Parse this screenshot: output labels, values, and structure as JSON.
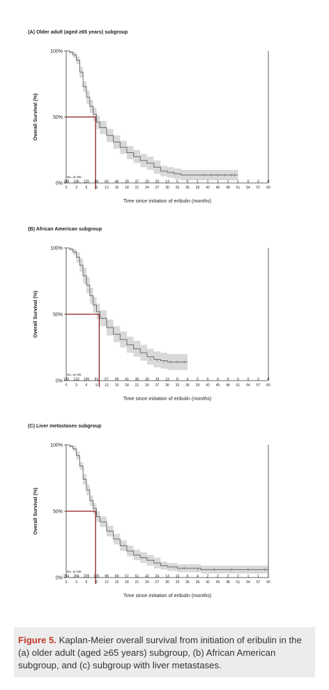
{
  "colors": {
    "background": "#ececec",
    "panel": "#ffffff",
    "curve": "#6b6b6b",
    "band": "#d9d9d9",
    "median_line": "#8b1a1a",
    "caption_accent": "#c0392b"
  },
  "caption": {
    "label": "Figure 5.",
    "text": " Kaplan-Meier overall survival from initiation of eribulin in the (a) older adult (aged ≥65 years) subgroup, (b) African American subgroup, and (c) subgroup with liver metastases."
  },
  "chart_data": [
    {
      "type": "line",
      "title": "(A) Older adult (aged ≥65 years) subgroup",
      "xlabel": "Time since initiation of eribulin (months)",
      "ylabel": "Overall Survival (%)",
      "xlim": [
        0,
        60
      ],
      "ylim": [
        0,
        100
      ],
      "xticks": [
        "0",
        "3",
        "6",
        "9",
        "12",
        "15",
        "18",
        "21",
        "24",
        "27",
        "30",
        "33",
        "36",
        "39",
        "42",
        "45",
        "48",
        "51",
        "54",
        "57",
        "60"
      ],
      "yticks": [
        "0%",
        "50%",
        "100%"
      ],
      "at_risk_label": "No. at risk",
      "at_risk": [
        "188",
        "186",
        "120",
        "88",
        "60",
        "48",
        "39",
        "37",
        "29",
        "20",
        "13",
        "5",
        "5",
        "1",
        "1",
        "1",
        "1",
        "1",
        "0",
        "0",
        "0"
      ],
      "median": 8.7,
      "survival": {
        "x": [
          0,
          1,
          2,
          3,
          4,
          5,
          6,
          7,
          8,
          9,
          10,
          12,
          14,
          16,
          18,
          20,
          22,
          24,
          26,
          28,
          30,
          32,
          34,
          36,
          38,
          40,
          42,
          44,
          46,
          48,
          50,
          51
        ],
        "y": [
          100,
          99,
          97,
          93,
          84,
          73,
          65,
          58,
          52,
          46,
          42,
          36,
          31,
          27,
          23,
          20,
          17,
          15,
          12,
          9,
          8,
          7,
          6,
          6,
          6,
          6,
          6,
          6,
          6,
          6,
          6,
          6
        ]
      },
      "band_width": [
        0,
        1,
        2,
        3,
        4,
        4,
        5,
        5,
        5,
        5,
        5,
        5,
        5,
        5,
        5,
        5,
        5,
        5,
        5,
        4,
        4,
        4,
        4,
        4,
        4,
        4,
        4,
        4,
        4,
        4,
        4,
        4
      ]
    },
    {
      "type": "line",
      "title": "(B) African American subgroup",
      "xlabel": "Time since initiation of eribulin (months)",
      "ylabel": "Overall Survival (%)",
      "xlim": [
        0,
        60
      ],
      "ylim": [
        0,
        100
      ],
      "xticks": [
        "0",
        "3",
        "6",
        "9",
        "12",
        "15",
        "18",
        "21",
        "24",
        "27",
        "30",
        "33",
        "36",
        "39",
        "42",
        "45",
        "48",
        "51",
        "54",
        "57",
        "60"
      ],
      "yticks": [
        "0%",
        "50%",
        "100%"
      ],
      "at_risk_label": "No. at risk",
      "at_risk": [
        "135",
        "133",
        "106",
        "81",
        "57",
        "49",
        "41",
        "36",
        "30",
        "19",
        "13",
        "8",
        "4",
        "0",
        "0",
        "0",
        "0",
        "0",
        "0",
        "0",
        "0"
      ],
      "median": 9.8,
      "survival": {
        "x": [
          0,
          1,
          2,
          3,
          4,
          5,
          6,
          7,
          8,
          9,
          10,
          12,
          14,
          16,
          18,
          20,
          22,
          24,
          26,
          28,
          30,
          32,
          34,
          36
        ],
        "y": [
          100,
          99,
          97,
          93,
          87,
          79,
          72,
          64,
          57,
          52,
          47,
          40,
          35,
          31,
          27,
          24,
          21,
          18,
          16,
          15,
          14,
          14,
          14,
          14
        ]
      },
      "band_width": [
        0,
        1,
        2,
        4,
        5,
        6,
        6,
        6,
        6,
        6,
        6,
        6,
        6,
        6,
        6,
        6,
        6,
        6,
        6,
        6,
        6,
        6,
        6,
        6
      ]
    },
    {
      "type": "line",
      "title": "(C) Liver metastases subgroup",
      "xlabel": "Time since initiation of eribulin (months)",
      "ylabel": "Overall Survival (%)",
      "xlim": [
        0,
        60
      ],
      "ylim": [
        0,
        100
      ],
      "xticks": [
        "0",
        "3",
        "6",
        "9",
        "12",
        "15",
        "18",
        "21",
        "24",
        "27",
        "30",
        "33",
        "36",
        "39",
        "42",
        "45",
        "48",
        "51",
        "54",
        "57",
        "60"
      ],
      "yticks": [
        "0%",
        "50%",
        "100%"
      ],
      "at_risk_label": "No. at risk",
      "at_risk": [
        "294",
        "284",
        "209",
        "135",
        "98",
        "69",
        "57",
        "51",
        "42",
        "24",
        "13",
        "13",
        "6",
        "4",
        "2",
        "2",
        "2",
        "2",
        "1",
        "1",
        "1"
      ],
      "median": 8.7,
      "survival": {
        "x": [
          0,
          1,
          2,
          3,
          4,
          5,
          6,
          7,
          8,
          9,
          10,
          12,
          14,
          16,
          18,
          20,
          22,
          24,
          26,
          28,
          30,
          33,
          36,
          40,
          45,
          50,
          55,
          60
        ],
        "y": [
          100,
          99,
          97,
          92,
          84,
          74,
          66,
          58,
          52,
          46,
          42,
          35,
          29,
          24,
          20,
          17,
          15,
          13,
          11,
          9,
          8,
          7,
          7,
          6,
          6,
          6,
          6,
          6
        ]
      },
      "band_width": [
        0,
        1,
        2,
        3,
        3,
        4,
        4,
        4,
        4,
        4,
        4,
        4,
        4,
        4,
        4,
        4,
        4,
        4,
        4,
        3,
        3,
        3,
        3,
        3,
        3,
        3,
        3,
        3
      ]
    }
  ]
}
